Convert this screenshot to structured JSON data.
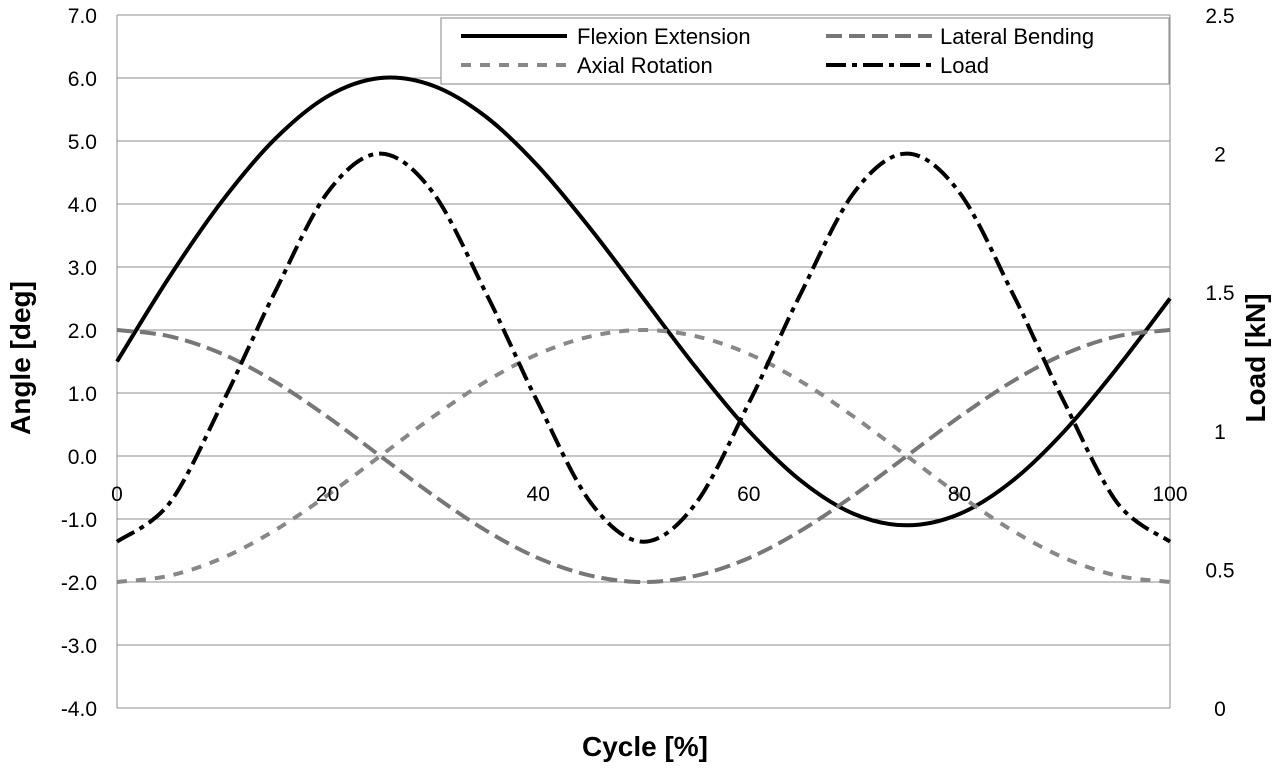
{
  "chart_data": {
    "type": "line",
    "xlabel": "Cycle [%]",
    "ylabel": "Angle [deg]",
    "y2label": "Load [kN]",
    "xlim": [
      0,
      100
    ],
    "ylim": [
      -4.0,
      7.0
    ],
    "y2lim": [
      0,
      2.5
    ],
    "xticks": [
      0,
      20,
      40,
      60,
      80,
      100
    ],
    "yticks": [
      -4.0,
      -3.0,
      -2.0,
      -1.0,
      0.0,
      1.0,
      2.0,
      3.0,
      4.0,
      5.0,
      6.0,
      7.0
    ],
    "y2ticks": [
      0,
      0.5,
      1,
      1.5,
      2,
      2.5
    ],
    "xtick_labels": [
      "0",
      "20",
      "40",
      "60",
      "80",
      "100"
    ],
    "ytick_labels": [
      "-4.0",
      "-3.0",
      "-2.0",
      "-1.0",
      "0.0",
      "1.0",
      "2.0",
      "3.0",
      "4.0",
      "5.0",
      "6.0",
      "7.0"
    ],
    "y2tick_labels": [
      "0",
      "0.5",
      "1",
      "1.5",
      "2",
      "2.5"
    ],
    "grid": "horizontal",
    "legend_position": "top-right",
    "series": [
      {
        "name": "Flexion Extension",
        "axis": "left",
        "color": "#000000",
        "style": "solid",
        "x": [
          0,
          5,
          10,
          15,
          20,
          25,
          30,
          35,
          40,
          45,
          50,
          55,
          60,
          65,
          70,
          75,
          80,
          85,
          90,
          95,
          100
        ],
        "values": [
          1.5,
          2.85,
          4.05,
          5.03,
          5.71,
          6.0,
          5.88,
          5.39,
          4.6,
          3.6,
          2.5,
          1.4,
          0.4,
          -0.4,
          -0.92,
          -1.1,
          -0.92,
          -0.4,
          0.4,
          1.4,
          2.5
        ]
      },
      {
        "name": "Lateral Bending",
        "axis": "left",
        "color": "#777777",
        "style": "long-dash",
        "x": [
          0,
          5,
          10,
          15,
          20,
          25,
          30,
          35,
          40,
          45,
          50,
          55,
          60,
          65,
          70,
          75,
          80,
          85,
          90,
          95,
          100
        ],
        "values": [
          2.0,
          1.9,
          1.62,
          1.18,
          0.62,
          0.0,
          -0.62,
          -1.18,
          -1.62,
          -1.9,
          -2.0,
          -1.9,
          -1.62,
          -1.18,
          -0.62,
          0.0,
          0.62,
          1.18,
          1.62,
          1.9,
          2.0
        ]
      },
      {
        "name": "Axial Rotation",
        "axis": "left",
        "color": "#888888",
        "style": "short-dash",
        "x": [
          0,
          5,
          10,
          15,
          20,
          25,
          30,
          35,
          40,
          45,
          50,
          55,
          60,
          65,
          70,
          75,
          80,
          85,
          90,
          95,
          100
        ],
        "values": [
          -2.0,
          -1.9,
          -1.62,
          -1.18,
          -0.62,
          0.0,
          0.62,
          1.18,
          1.62,
          1.9,
          2.0,
          1.9,
          1.62,
          1.18,
          0.62,
          0.0,
          -0.62,
          -1.18,
          -1.62,
          -1.9,
          -2.0
        ]
      },
      {
        "name": "Load",
        "axis": "right",
        "color": "#000000",
        "style": "dash-dot",
        "x": [
          0,
          5,
          10,
          12.5,
          15,
          20,
          25,
          30,
          35,
          37.5,
          40,
          45,
          50,
          55,
          60,
          62.5,
          65,
          70,
          75,
          80,
          85,
          87.5,
          90,
          95,
          100
        ],
        "values": [
          0.6,
          0.74,
          1.1,
          1.3,
          1.5,
          1.86,
          2.0,
          1.86,
          1.5,
          1.3,
          1.1,
          0.74,
          0.6,
          0.74,
          1.1,
          1.3,
          1.5,
          1.86,
          2.0,
          1.86,
          1.5,
          1.3,
          1.1,
          0.74,
          0.6
        ]
      }
    ]
  }
}
